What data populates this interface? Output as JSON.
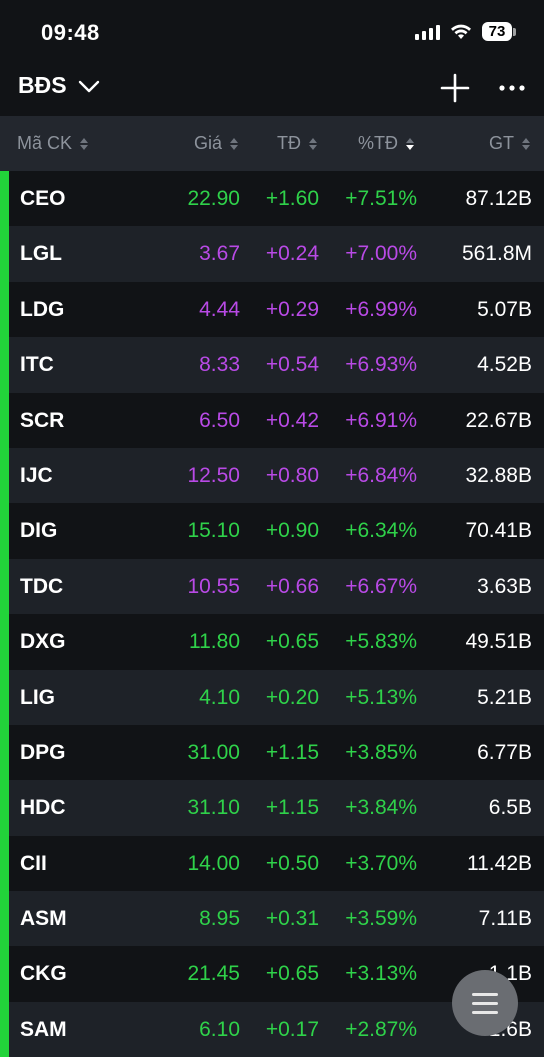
{
  "status": {
    "time": "09:48",
    "battery": "73"
  },
  "header": {
    "title": "BĐS"
  },
  "columns": {
    "symbol": "Mã CK",
    "price": "Giá",
    "change": "TĐ",
    "percent": "%TĐ",
    "value": "GT"
  },
  "colors": {
    "up": "#2fd24a",
    "ceiling": "#b94ae6",
    "bar": "#22d33a"
  },
  "rows": [
    {
      "symbol": "CEO",
      "price": "22.90",
      "change": "+1.60",
      "percent": "+7.51%",
      "value": "87.12B",
      "color": "up"
    },
    {
      "symbol": "LGL",
      "price": "3.67",
      "change": "+0.24",
      "percent": "+7.00%",
      "value": "561.8M",
      "color": "ceiling"
    },
    {
      "symbol": "LDG",
      "price": "4.44",
      "change": "+0.29",
      "percent": "+6.99%",
      "value": "5.07B",
      "color": "ceiling"
    },
    {
      "symbol": "ITC",
      "price": "8.33",
      "change": "+0.54",
      "percent": "+6.93%",
      "value": "4.52B",
      "color": "ceiling"
    },
    {
      "symbol": "SCR",
      "price": "6.50",
      "change": "+0.42",
      "percent": "+6.91%",
      "value": "22.67B",
      "color": "ceiling"
    },
    {
      "symbol": "IJC",
      "price": "12.50",
      "change": "+0.80",
      "percent": "+6.84%",
      "value": "32.88B",
      "color": "ceiling"
    },
    {
      "symbol": "DIG",
      "price": "15.10",
      "change": "+0.90",
      "percent": "+6.34%",
      "value": "70.41B",
      "color": "up"
    },
    {
      "symbol": "TDC",
      "price": "10.55",
      "change": "+0.66",
      "percent": "+6.67%",
      "value": "3.63B",
      "color": "ceiling"
    },
    {
      "symbol": "DXG",
      "price": "11.80",
      "change": "+0.65",
      "percent": "+5.83%",
      "value": "49.51B",
      "color": "up"
    },
    {
      "symbol": "LIG",
      "price": "4.10",
      "change": "+0.20",
      "percent": "+5.13%",
      "value": "5.21B",
      "color": "up"
    },
    {
      "symbol": "DPG",
      "price": "31.00",
      "change": "+1.15",
      "percent": "+3.85%",
      "value": "6.77B",
      "color": "up"
    },
    {
      "symbol": "HDC",
      "price": "31.10",
      "change": "+1.15",
      "percent": "+3.84%",
      "value": "6.5B",
      "color": "up"
    },
    {
      "symbol": "CII",
      "price": "14.00",
      "change": "+0.50",
      "percent": "+3.70%",
      "value": "11.42B",
      "color": "up"
    },
    {
      "symbol": "ASM",
      "price": "8.95",
      "change": "+0.31",
      "percent": "+3.59%",
      "value": "7.11B",
      "color": "up"
    },
    {
      "symbol": "CKG",
      "price": "21.45",
      "change": "+0.65",
      "percent": "+3.13%",
      "value": "1.1B",
      "color": "up"
    },
    {
      "symbol": "SAM",
      "price": "6.10",
      "change": "+0.17",
      "percent": "+2.87%",
      "value": "1.6B",
      "color": "up"
    }
  ]
}
